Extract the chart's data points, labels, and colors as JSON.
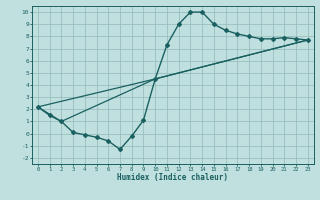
{
  "xlabel": "Humidex (Indice chaleur)",
  "bg_color": "#c0e0e0",
  "grid_color": "#9abebe",
  "line_color": "#1a6060",
  "xlim": [
    -0.5,
    23.5
  ],
  "ylim": [
    -2.5,
    10.5
  ],
  "xticks": [
    0,
    1,
    2,
    3,
    4,
    5,
    6,
    7,
    8,
    9,
    10,
    11,
    12,
    13,
    14,
    15,
    16,
    17,
    18,
    19,
    20,
    21,
    22,
    23
  ],
  "yticks": [
    -2,
    -1,
    0,
    1,
    2,
    3,
    4,
    5,
    6,
    7,
    8,
    9,
    10
  ],
  "curve1_x": [
    0,
    1,
    2,
    3,
    4,
    5,
    6,
    7,
    8,
    9,
    10,
    11,
    12,
    13,
    14,
    15,
    16,
    17,
    18,
    19,
    20,
    21,
    22,
    23
  ],
  "curve1_y": [
    2.2,
    1.5,
    1.0,
    0.1,
    -0.1,
    -0.3,
    -0.6,
    -1.3,
    -0.2,
    1.1,
    4.5,
    7.3,
    9.0,
    10.0,
    10.0,
    9.0,
    8.5,
    8.2,
    8.0,
    7.8,
    7.8,
    7.9,
    7.8,
    7.7
  ],
  "curve2_x": [
    0,
    2,
    10,
    23
  ],
  "curve2_y": [
    2.2,
    1.0,
    4.5,
    7.7
  ],
  "curve3_x": [
    0,
    10,
    23
  ],
  "curve3_y": [
    2.2,
    4.5,
    7.7
  ],
  "tick_fontsize": 4.0,
  "xlabel_fontsize": 5.5
}
